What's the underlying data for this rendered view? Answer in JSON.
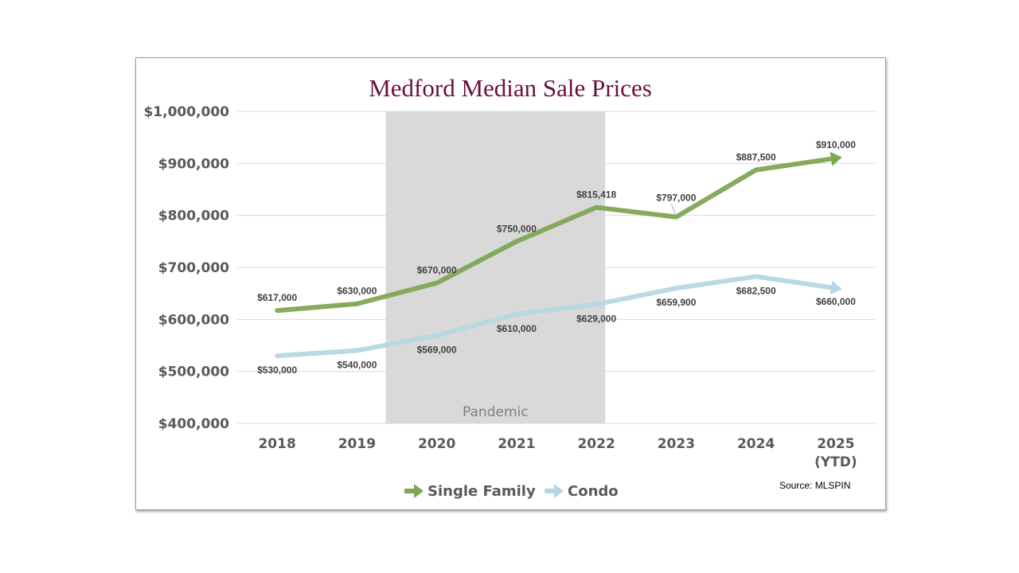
{
  "chart_data": {
    "type": "line",
    "title": "Medford Median Sale Prices",
    "xlabel": "",
    "ylabel": "",
    "categories": [
      "2018",
      "2019",
      "2020",
      "2021",
      "2022",
      "2023",
      "2024",
      "2025\n(YTD)"
    ],
    "category_lines": [
      [
        "2018"
      ],
      [
        "2019"
      ],
      [
        "2020"
      ],
      [
        "2021"
      ],
      [
        "2022"
      ],
      [
        "2023"
      ],
      [
        "2024"
      ],
      [
        "2025",
        "(YTD)"
      ]
    ],
    "ylim": [
      400000,
      1000000
    ],
    "yticks": [
      400000,
      500000,
      600000,
      700000,
      800000,
      900000,
      1000000
    ],
    "ytick_labels": [
      "$400,000",
      "$500,000",
      "$600,000",
      "$700,000",
      "$800,000",
      "$900,000",
      "$1,000,000"
    ],
    "grid": true,
    "series": [
      {
        "name": "Single Family",
        "color": "#7fa653",
        "values": [
          617000,
          630000,
          670000,
          750000,
          815418,
          797000,
          887500,
          910000
        ],
        "labels": [
          "$617,000",
          "$630,000",
          "$670,000",
          "$750,000",
          "$815,418",
          "$797,000",
          "$887,500",
          "$910,000"
        ],
        "label_position": "above"
      },
      {
        "name": "Condo",
        "color": "#b5d7e1",
        "values": [
          530000,
          540000,
          569000,
          610000,
          629000,
          659900,
          682500,
          660000
        ],
        "labels": [
          "$530,000",
          "$540,000",
          "$569,000",
          "$610,000",
          "$629,000",
          "$659,900",
          "$682,500",
          "$660,000"
        ],
        "label_position": "below"
      }
    ],
    "annotations": [
      {
        "type": "shaded-band",
        "label": "Pandemic",
        "x_start": "2019.5",
        "x_end": "2022.5",
        "color": "#d9d9d9"
      }
    ],
    "legend": {
      "placement": "bottom-center",
      "entries": [
        "Single Family",
        "Condo"
      ]
    },
    "source": "Source:  MLSPIN",
    "title_color": "#6b0f3a"
  }
}
